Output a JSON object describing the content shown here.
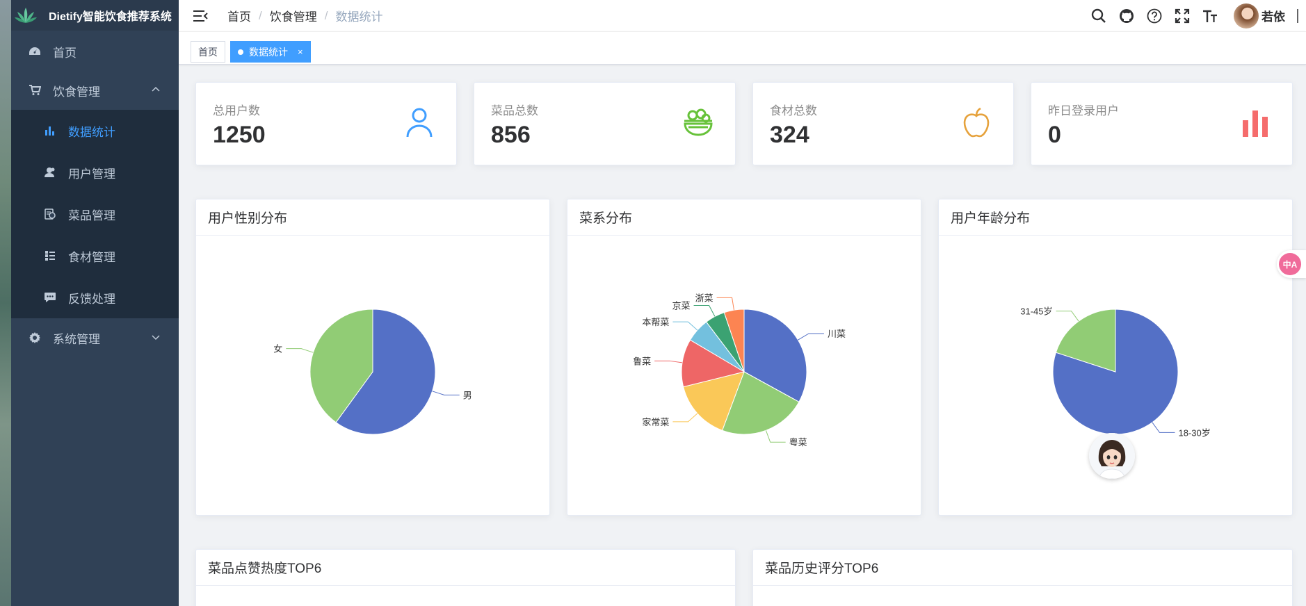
{
  "app": {
    "title": "Dietify智能饮食推荐系统"
  },
  "sidebar": {
    "items": [
      {
        "label": "首页",
        "icon": "dashboard-icon"
      },
      {
        "label": "饮食管理",
        "icon": "cart-icon",
        "expanded": true,
        "children": [
          {
            "label": "数据统计",
            "icon": "bar-chart-icon",
            "active": true
          },
          {
            "label": "用户管理",
            "icon": "users-icon"
          },
          {
            "label": "菜品管理",
            "icon": "dish-icon"
          },
          {
            "label": "食材管理",
            "icon": "list-icon"
          },
          {
            "label": "反馈处理",
            "icon": "message-icon"
          }
        ]
      },
      {
        "label": "系统管理",
        "icon": "gear-icon",
        "expanded": false
      }
    ]
  },
  "breadcrumb": [
    "首页",
    "饮食管理",
    "数据统计"
  ],
  "navbar": {
    "username": "若依",
    "icons": [
      "search-icon",
      "github-icon",
      "help-icon",
      "fullscreen-icon",
      "font-size-icon"
    ]
  },
  "tags": [
    {
      "label": "首页"
    },
    {
      "label": "数据统计",
      "active": true,
      "close": "×"
    }
  ],
  "stats": [
    {
      "label": "总用户数",
      "value": "1250",
      "icon": "user-icon",
      "color": "#409eff"
    },
    {
      "label": "菜品总数",
      "value": "856",
      "icon": "bowl-icon",
      "color": "#67c23a"
    },
    {
      "label": "食材总数",
      "value": "324",
      "icon": "apple-icon",
      "color": "#e6a23c"
    },
    {
      "label": "昨日登录用户",
      "value": "0",
      "icon": "bar-chart-icon",
      "color": "#f56c6c"
    }
  ],
  "charts_titles": {
    "gender": "用户性别分布",
    "cuisine": "菜系分布",
    "age": "用户年龄分布",
    "likes": "菜品点赞热度TOP6",
    "ratings": "菜品历史评分TOP6"
  },
  "side_badge": "中A",
  "chart_data": [
    {
      "type": "pie",
      "title": "用户性别分布",
      "slices": [
        {
          "name": "男",
          "value": 60,
          "color": "#5470c6"
        },
        {
          "name": "女",
          "value": 40,
          "color": "#91cc75"
        }
      ]
    },
    {
      "type": "pie",
      "title": "菜系分布",
      "slices": [
        {
          "name": "川菜",
          "value": 32,
          "color": "#5470c6"
        },
        {
          "name": "粤菜",
          "value": 22,
          "color": "#91cc75"
        },
        {
          "name": "家常菜",
          "value": 15,
          "color": "#fac858"
        },
        {
          "name": "鲁菜",
          "value": 12,
          "color": "#ee6666"
        },
        {
          "name": "本帮菜",
          "value": 6,
          "color": "#73c0de"
        },
        {
          "name": "京菜",
          "value": 5,
          "color": "#3ba272"
        },
        {
          "name": "浙菜",
          "value": 5,
          "color": "#fc8452"
        }
      ]
    },
    {
      "type": "pie",
      "title": "用户年龄分布",
      "slices": [
        {
          "name": "18-30岁",
          "value": 80,
          "color": "#5470c6"
        },
        {
          "name": "31-45岁",
          "value": 20,
          "color": "#91cc75"
        }
      ]
    }
  ]
}
